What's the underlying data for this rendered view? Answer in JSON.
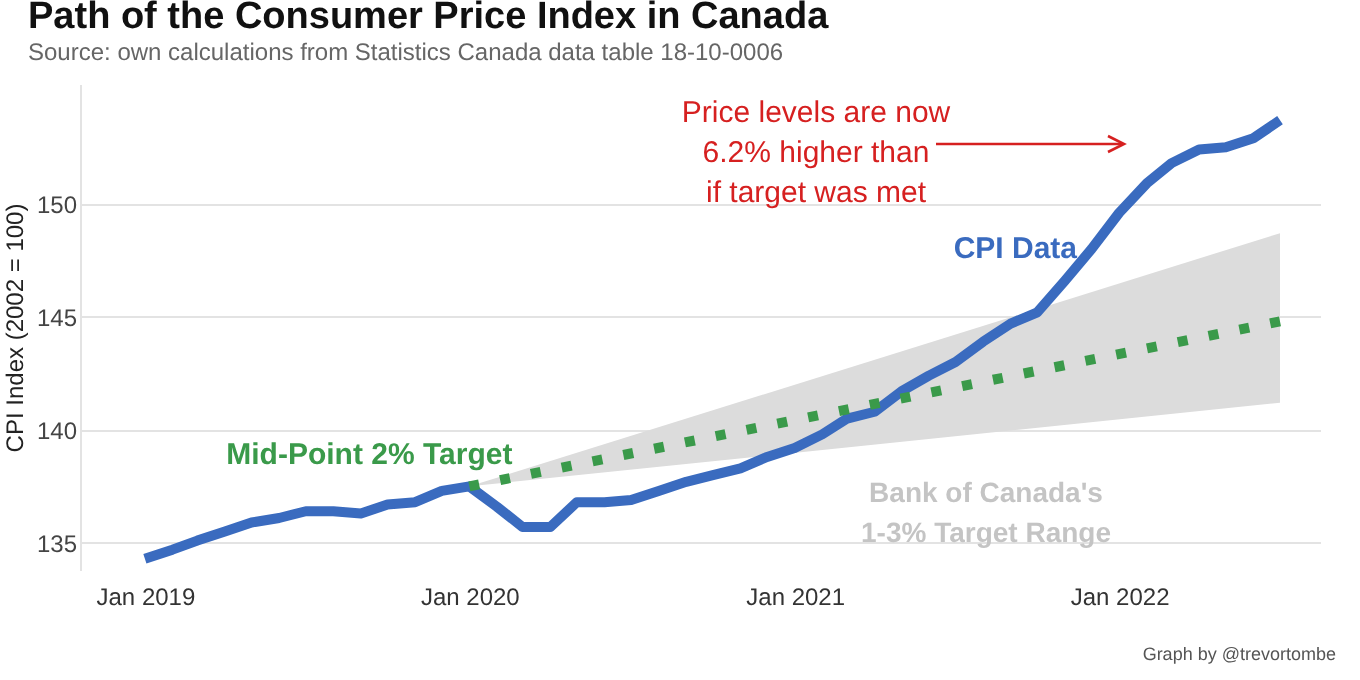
{
  "chart_data": {
    "type": "line",
    "title": "Path of the Consumer Price Index in Canada",
    "subtitle": "Source: own calculations from Statistics Canada data table 18-10-0006",
    "ylabel": "CPI Index (2002 = 100)",
    "xlim": [
      "2018-10-20",
      "2022-08-15"
    ],
    "xticks": [
      {
        "value": "2019-01",
        "label": "Jan 2019"
      },
      {
        "value": "2020-01",
        "label": "Jan 2020"
      },
      {
        "value": "2021-01",
        "label": "Jan 2021"
      },
      {
        "value": "2022-01",
        "label": "Jan 2022"
      }
    ],
    "ylim": [
      133.8,
      155.3
    ],
    "yticks": [
      135,
      140,
      145,
      150
    ],
    "grid": "y",
    "series": [
      {
        "name": "CPI Data",
        "color": "#3a6bbf",
        "x": [
          "2019-01",
          "2019-02",
          "2019-03",
          "2019-04",
          "2019-05",
          "2019-06",
          "2019-07",
          "2019-08",
          "2019-09",
          "2019-10",
          "2019-11",
          "2019-12",
          "2020-01",
          "2020-02",
          "2020-03",
          "2020-04",
          "2020-05",
          "2020-06",
          "2020-07",
          "2020-08",
          "2020-09",
          "2020-10",
          "2020-11",
          "2020-12",
          "2021-01",
          "2021-02",
          "2021-03",
          "2021-04",
          "2021-05",
          "2021-06",
          "2021-07",
          "2021-08",
          "2021-09",
          "2021-10",
          "2021-11",
          "2021-12",
          "2022-01",
          "2022-02",
          "2022-03",
          "2022-04",
          "2022-05",
          "2022-06",
          "2022-07"
        ],
        "values": [
          134.3,
          134.7,
          135.1,
          135.5,
          135.9,
          136.1,
          136.4,
          136.4,
          136.3,
          136.7,
          136.8,
          137.3,
          137.5,
          136.6,
          135.7,
          135.7,
          136.8,
          136.8,
          136.9,
          137.3,
          137.7,
          138.0,
          138.3,
          138.8,
          139.2,
          139.8,
          140.5,
          140.8,
          141.7,
          142.4,
          143.0,
          143.9,
          144.7,
          145.2,
          146.6,
          148.0,
          149.6,
          150.9,
          151.8,
          152.4,
          152.5,
          152.9,
          153.7
        ]
      },
      {
        "name": "Mid-Point 2% Target",
        "color": "#3a9a4a",
        "line_style": "dotted",
        "x": [
          "2020-01",
          "2022-07"
        ],
        "values": [
          137.5,
          144.8
        ],
        "lower": [
          137.5,
          141.2
        ],
        "upper": [
          137.5,
          148.7
        ]
      }
    ],
    "annotations": [
      "Price levels are now\n6.2% higher than\nif target was met",
      "Bank of Canada's\n1-3% Target Range",
      "Graph by @trevortombe"
    ]
  }
}
